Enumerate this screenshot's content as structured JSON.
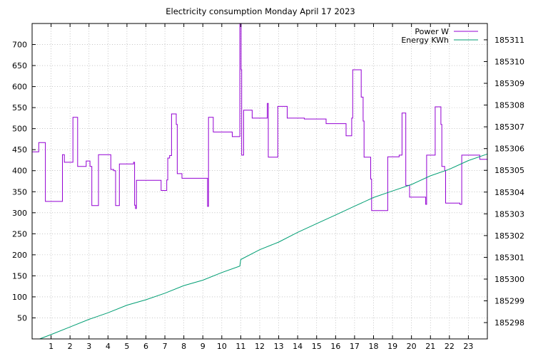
{
  "chart_data": {
    "type": "line",
    "title": "Electricity consumption Monday April 17 2023",
    "xlabel": "",
    "ylabel": "",
    "y2label": "",
    "grid": true,
    "legend_position": "top-right",
    "x_range": [
      0,
      24
    ],
    "y_range": [
      0,
      750
    ],
    "y2_range": [
      185297.25,
      185311.75
    ],
    "x_ticks": [
      1,
      2,
      3,
      4,
      5,
      6,
      7,
      8,
      9,
      10,
      11,
      12,
      13,
      14,
      15,
      16,
      17,
      18,
      19,
      20,
      21,
      22,
      23
    ],
    "y_ticks": [
      50,
      100,
      150,
      200,
      250,
      300,
      350,
      400,
      450,
      500,
      550,
      600,
      650,
      700
    ],
    "y2_ticks": [
      185298,
      185299,
      185300,
      185301,
      185302,
      185303,
      185304,
      185305,
      185306,
      185307,
      185308,
      185309,
      185310,
      185311
    ],
    "series": [
      {
        "name": "Power W",
        "axis": "y",
        "color": "#9400d3",
        "step": true,
        "points": [
          [
            0,
            445
          ],
          [
            0.35,
            467
          ],
          [
            0.7,
            327
          ],
          [
            1.6,
            438
          ],
          [
            1.7,
            420
          ],
          [
            2.15,
            527
          ],
          [
            2.4,
            410
          ],
          [
            2.85,
            423
          ],
          [
            3.05,
            410
          ],
          [
            3.15,
            317
          ],
          [
            3.5,
            438
          ],
          [
            4.15,
            403
          ],
          [
            4.3,
            400
          ],
          [
            4.4,
            317
          ],
          [
            4.6,
            416
          ],
          [
            5.35,
            420
          ],
          [
            5.4,
            318
          ],
          [
            5.45,
            310
          ],
          [
            5.5,
            377
          ],
          [
            6.8,
            353
          ],
          [
            7.1,
            378
          ],
          [
            7.15,
            430
          ],
          [
            7.25,
            436
          ],
          [
            7.35,
            535
          ],
          [
            7.6,
            510
          ],
          [
            7.65,
            393
          ],
          [
            7.9,
            382
          ],
          [
            9.25,
            315
          ],
          [
            9.3,
            527
          ],
          [
            9.55,
            492
          ],
          [
            10.55,
            481
          ],
          [
            10.95,
            750
          ],
          [
            11.02,
            640
          ],
          [
            11.05,
            437
          ],
          [
            11.15,
            544
          ],
          [
            11.6,
            525
          ],
          [
            12.4,
            560
          ],
          [
            12.45,
            432
          ],
          [
            12.95,
            553
          ],
          [
            13.45,
            525
          ],
          [
            14.35,
            523
          ],
          [
            15.5,
            512
          ],
          [
            16.55,
            483
          ],
          [
            16.85,
            525
          ],
          [
            16.9,
            640
          ],
          [
            17.35,
            575
          ],
          [
            17.45,
            518
          ],
          [
            17.5,
            432
          ],
          [
            17.85,
            380
          ],
          [
            17.9,
            305
          ],
          [
            18.75,
            433
          ],
          [
            19.35,
            437
          ],
          [
            19.5,
            537
          ],
          [
            19.7,
            365
          ],
          [
            19.9,
            337
          ],
          [
            20.75,
            320
          ],
          [
            20.8,
            437
          ],
          [
            21.25,
            552
          ],
          [
            21.55,
            510
          ],
          [
            21.6,
            410
          ],
          [
            21.75,
            400
          ],
          [
            21.8,
            323
          ],
          [
            22.55,
            320
          ],
          [
            22.65,
            437
          ],
          [
            23.6,
            427
          ],
          [
            24,
            427
          ]
        ]
      },
      {
        "name": "Energy KWh",
        "axis": "y2",
        "color": "#009e73",
        "step": false,
        "points": [
          [
            0.4,
            185297.25
          ],
          [
            1,
            185297.45
          ],
          [
            2,
            185297.8
          ],
          [
            3,
            185298.15
          ],
          [
            4,
            185298.45
          ],
          [
            5,
            185298.8
          ],
          [
            6,
            185299.05
          ],
          [
            7,
            185299.35
          ],
          [
            8,
            185299.7
          ],
          [
            9,
            185299.95
          ],
          [
            10,
            185300.3
          ],
          [
            10.95,
            185300.6
          ],
          [
            11.0,
            185300.9
          ],
          [
            12,
            185301.35
          ],
          [
            13,
            185301.7
          ],
          [
            14,
            185302.15
          ],
          [
            15,
            185302.55
          ],
          [
            16,
            185302.95
          ],
          [
            17,
            185303.35
          ],
          [
            18,
            185303.75
          ],
          [
            19,
            185304.05
          ],
          [
            20,
            185304.35
          ],
          [
            21,
            185304.75
          ],
          [
            22,
            185305.05
          ],
          [
            23,
            185305.45
          ],
          [
            24,
            185305.75
          ]
        ]
      }
    ]
  }
}
